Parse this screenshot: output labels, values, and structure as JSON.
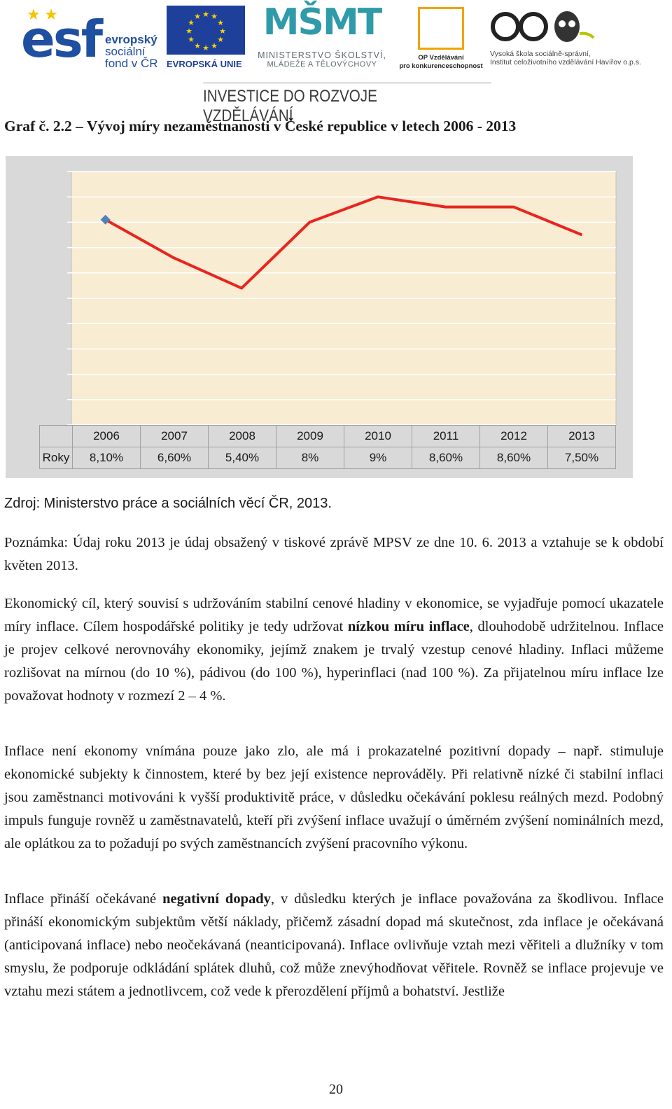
{
  "header": {
    "esf_big": "esf",
    "esf_line1": "evropský",
    "esf_line2": "sociální",
    "esf_line3": "fond v ČR",
    "eu_caption": "EVROPSKÁ UNIE",
    "msmt_mark": "MŠMT",
    "msmt_line1": "MINISTERSTVO ŠKOLSTVÍ,",
    "msmt_line2": "MLÁDEŽE A TĚLOVÝCHOVY",
    "op_line1": "OP Vzdělávání",
    "op_line2": "pro konkurenceschopnost",
    "vs_line1": "Vysoká škola sociálně-správní,",
    "vs_line2": "Institut celoživotního vzdělávání Havířov o.p.s.",
    "slogan": "INVESTICE DO ROZVOJE VZDĚLÁVÁNÍ",
    "colors": {
      "esf_blue": "#1f4fa0",
      "eu_blue": "#1e3f9a",
      "star_yellow": "#f5c400",
      "msmt_teal": "#2f9aa8",
      "op_orange": "#f4a300"
    }
  },
  "title": "Graf č. 2.2 – Vývoj míry nezaměstnanosti v České republice v letech 2006 - 2013",
  "chart_data": {
    "type": "line",
    "categories": [
      "2006",
      "2007",
      "2008",
      "2009",
      "2010",
      "2011",
      "2012",
      "2013"
    ],
    "series": [
      {
        "name": "Roky",
        "values": [
          8.1,
          6.6,
          5.4,
          8.0,
          9.0,
          8.6,
          8.6,
          7.5
        ],
        "labels": [
          "8,10%",
          "6,60%",
          "5,40%",
          "8%",
          "9%",
          "8,60%",
          "8,60%",
          "7,50%"
        ],
        "color": "#e8251f"
      }
    ],
    "ylim": [
      0,
      10
    ],
    "grid": true,
    "plot_background": "#f8ecd3",
    "frame_background": "#d9d9d9",
    "first_marker_color": "#4f81bd"
  },
  "source": "Zdroj: Ministerstvo práce a sociálních věcí ČR, 2013.",
  "note": "Poznámka: Údaj roku 2013 je údaj obsažený v tiskové zprávě MPSV ze dne 10. 6. 2013 a vztahuje se k období květen 2013.",
  "p1": {
    "a": "Ekonomický cíl, který souvisí s udržováním stabilní cenové hladiny v ekonomice, se vyjadřuje pomocí ukazatele míry inflace. Cílem hospodářské politiky je tedy udržovat ",
    "bold": "nízkou míru inflace",
    "b": ", dlouhodobě udržitelnou. Inflace je projev celkové nerovnováhy ekonomiky, jejímž znakem je trvalý vzestup cenové hladiny. Inflaci můžeme rozlišovat na mírnou (do 10 %), pádivou (do 100 %), hyperinflaci (nad 100 %). Za přijatelnou míru inflace lze považovat hodnoty v rozmezí 2 – 4 %."
  },
  "p2": "Inflace není ekonomy vnímána pouze jako zlo, ale má i prokazatelné pozitivní dopady – např. stimuluje ekonomické subjekty k činnostem, které by bez její existence neprováděly. Při relativně nízké či stabilní inflaci jsou zaměstnanci motivováni k vyšší produktivitě práce, v důsledku očekávání poklesu reálných mezd. Podobný impuls funguje rovněž u zaměstnavatelů, kteří při zvýšení inflace uvažují o úměrném zvýšení nominálních mezd, ale oplátkou za to požadují po svých zaměstnancích zvýšení pracovního výkonu.",
  "p3": {
    "a": "Inflace přináší očekávané ",
    "bold": "negativní dopady",
    "b": ", v důsledku kterých je inflace považována za škodlivou. Inflace přináší ekonomickým subjektům větší náklady, přičemž zásadní dopad má skutečnost, zda inflace je očekávaná (anticipovaná inflace) nebo neočekávaná (neanticipovaná). Inflace ovlivňuje vztah mezi věřiteli a dlužníky v tom smyslu, že podporuje odkládání splátek dluhů, což může znevýhodňovat věřitele. Rovněž se inflace projevuje ve vztahu mezi státem a jednotlivcem, což vede k přerozdělení příjmů a bohatství. Jestliže"
  },
  "page_number": "20"
}
